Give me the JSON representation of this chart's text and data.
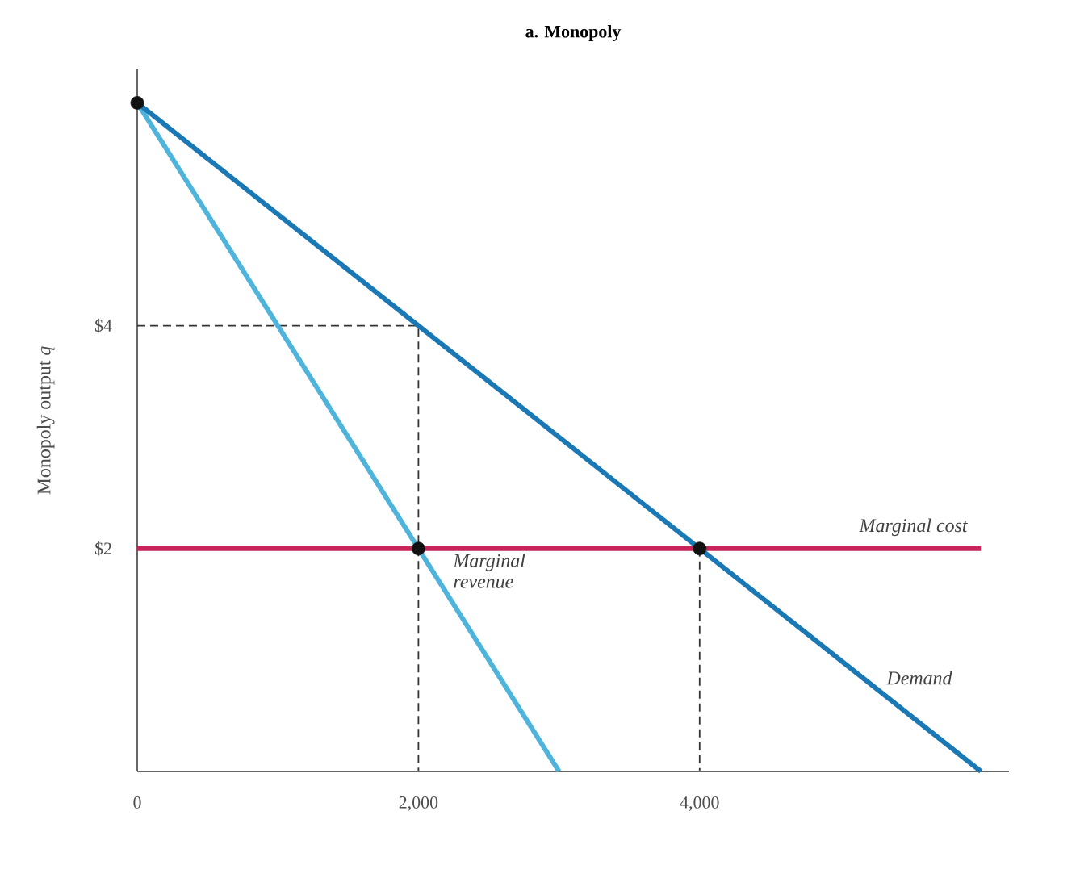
{
  "chart_data": {
    "type": "line",
    "title": "a. Monopoly",
    "ylabel": "Monopoly output *q*",
    "xlim": [
      0,
      6200
    ],
    "ylim": [
      0,
      6.3
    ],
    "xticks": [
      {
        "value": 0,
        "label": "0"
      },
      {
        "value": 2000,
        "label": "2,000"
      },
      {
        "value": 4000,
        "label": "4,000"
      }
    ],
    "yticks": [
      {
        "value": 2,
        "label": "$2"
      },
      {
        "value": 4,
        "label": "$4"
      }
    ],
    "series": [
      {
        "color": "#333333",
        "line_style": "dashed",
        "x": [
          0,
          2000,
          2000
        ],
        "values": [
          4,
          4,
          0
        ]
      },
      {
        "color": "#333333",
        "line_style": "dashed",
        "x": [
          4000,
          4000
        ],
        "values": [
          2,
          0
        ]
      },
      {
        "name": "Marginal cost",
        "color": "#c8245a",
        "line_style": "solid",
        "x": [
          0,
          6000
        ],
        "values": [
          2,
          2
        ]
      },
      {
        "name": "Marginal revenue",
        "color": "#4fb4dc",
        "line_style": "solid",
        "x": [
          0,
          3000
        ],
        "values": [
          6,
          0
        ]
      },
      {
        "name": "Demand",
        "color": "#1a78b4",
        "line_style": "solid",
        "x": [
          0,
          6000
        ],
        "values": [
          6,
          0
        ]
      },
      {
        "type": "scatter",
        "color": "#111111",
        "marker": "circle",
        "x": [
          0,
          2000,
          4000
        ],
        "values": [
          6,
          2,
          2
        ]
      }
    ]
  }
}
